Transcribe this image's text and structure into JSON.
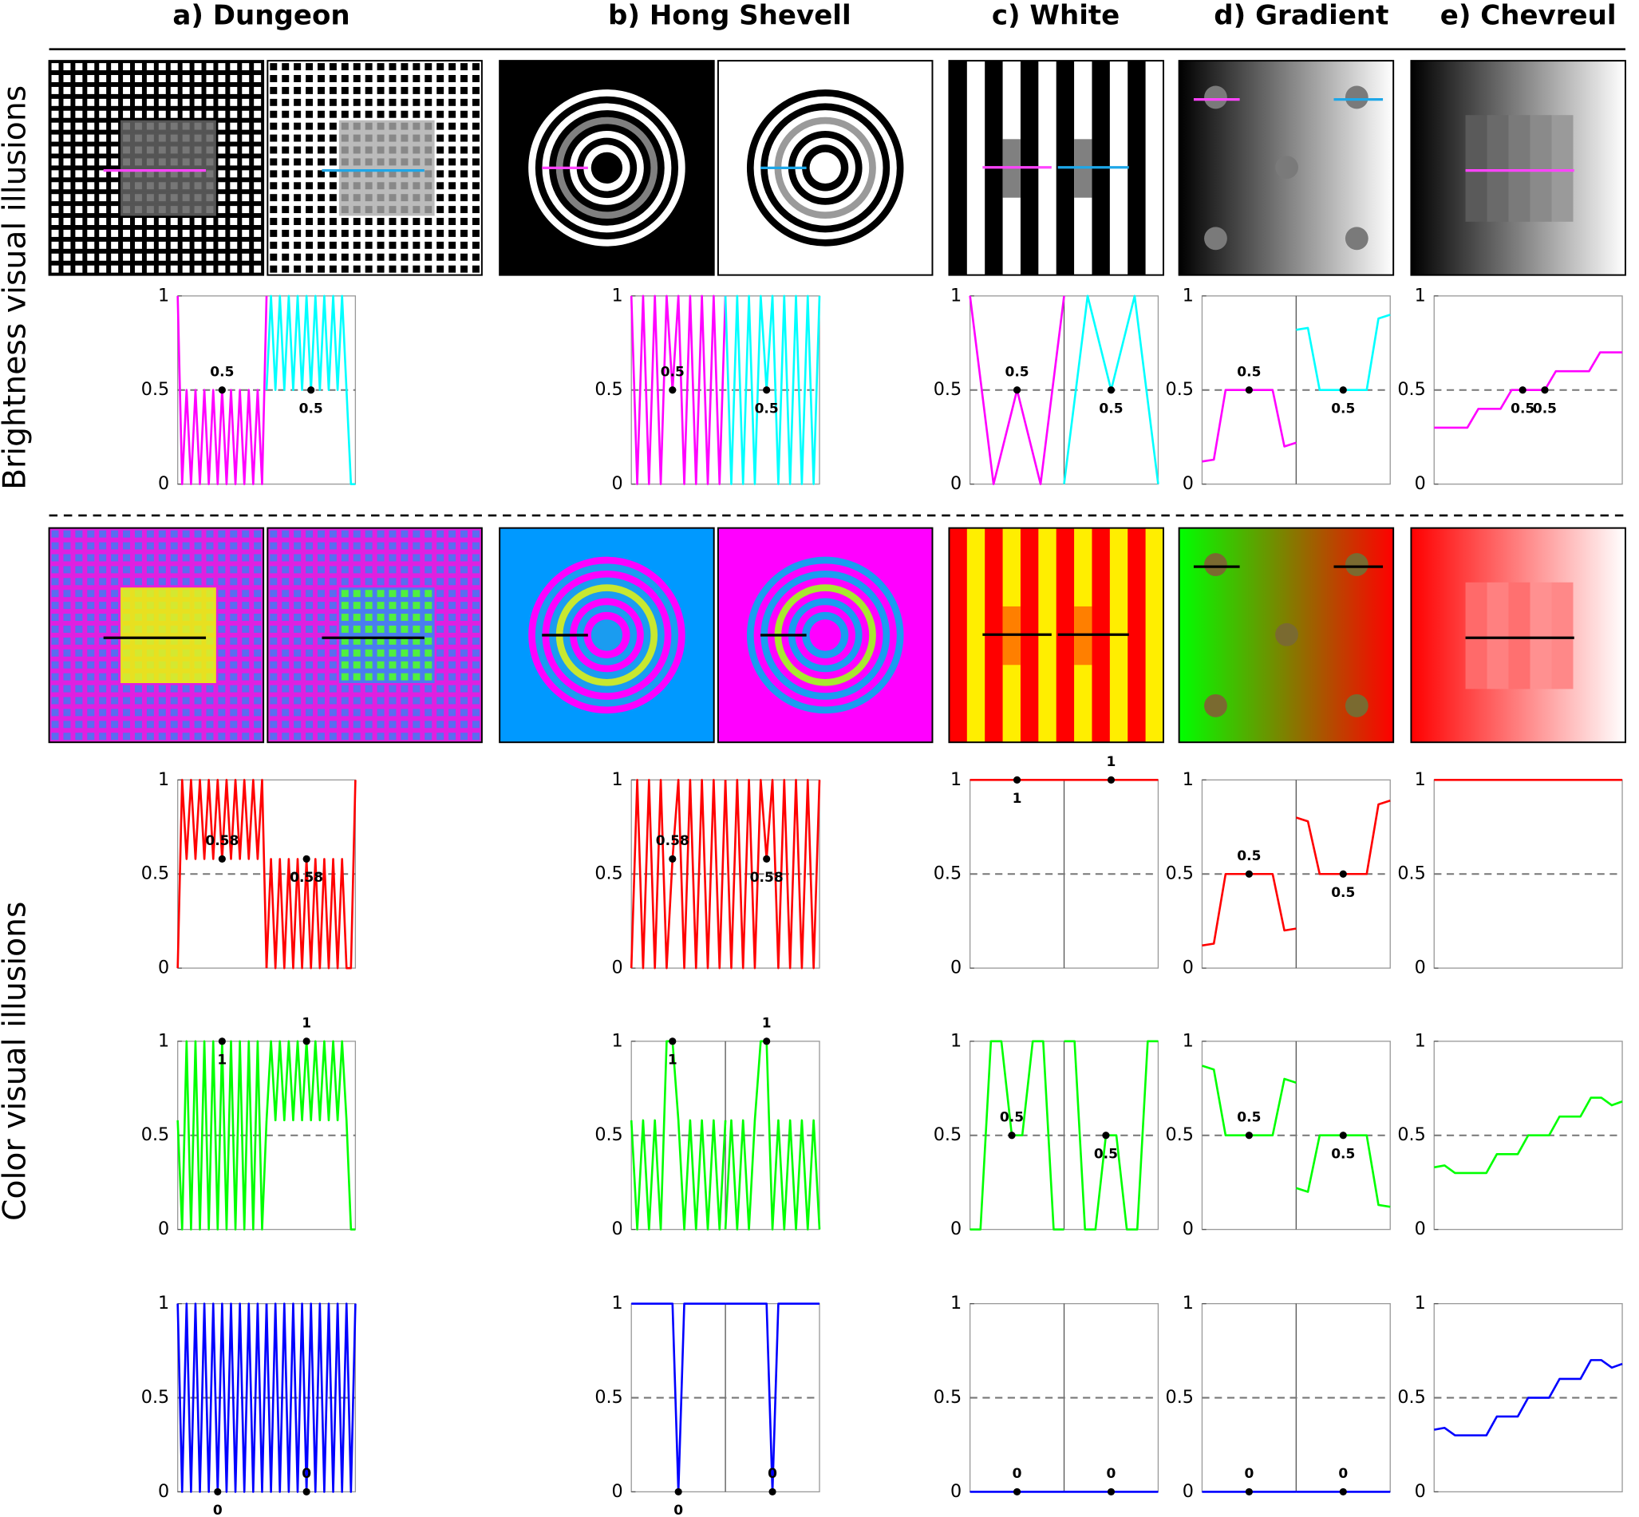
{
  "figure": {
    "columns": [
      "a) Dungeon",
      "b) Hong Shevell",
      "c) White",
      "d) Gradient",
      "e) Chevreul"
    ],
    "rows": [
      "Brightness visual illusions",
      "Color visual illusions"
    ]
  },
  "chart_data": [
    {
      "type": "line",
      "ylim": [
        0,
        1
      ],
      "yticks": [
        0,
        0.5,
        1
      ],
      "reference_line": 0.5,
      "divider": false,
      "series": [
        {
          "color": "#ff00ff",
          "values": [
            1,
            0,
            0.5,
            0,
            0.5,
            0,
            0.5,
            0,
            0.5,
            0,
            0.5,
            0,
            0.5,
            0,
            0.5,
            0,
            0.5,
            0,
            0.5,
            0,
            1
          ]
        },
        {
          "color": "#00ffff",
          "values": [
            0.5,
            1,
            0.5,
            1,
            0.5,
            1,
            0.5,
            1,
            0.5,
            1,
            0.5,
            1,
            0.5,
            1,
            0.5,
            1,
            0.5,
            1,
            0.5,
            0,
            0
          ]
        }
      ],
      "annotations": [
        {
          "series": 0,
          "index": 10,
          "value": 0.5
        },
        {
          "series": 1,
          "index": 10,
          "value": 0.5
        }
      ]
    },
    {
      "type": "line",
      "ylim": [
        0,
        1
      ],
      "yticks": [
        0,
        0.5,
        1
      ],
      "reference_line": 0.5,
      "divider": false,
      "series": [
        {
          "color": "#ff00ff",
          "values": [
            1,
            0,
            1,
            0,
            1,
            0,
            1,
            0.5,
            1,
            0,
            1,
            0,
            1,
            0,
            1,
            0,
            1
          ]
        },
        {
          "color": "#00ffff",
          "values": [
            1,
            0,
            1,
            0,
            1,
            0,
            1,
            0.5,
            1,
            0,
            1,
            0,
            1,
            0,
            1,
            0,
            1
          ]
        }
      ],
      "annotations": [
        {
          "series": 0,
          "index": 7,
          "value": 0.5
        },
        {
          "series": 1,
          "index": 7,
          "value": 0.5
        }
      ]
    },
    {
      "type": "line",
      "ylim": [
        0,
        1
      ],
      "yticks": [
        0,
        0.5,
        1
      ],
      "reference_line": 0.5,
      "divider": true,
      "series": [
        {
          "color": "#ff00ff",
          "values": [
            1,
            0,
            0.5,
            0,
            1
          ]
        },
        {
          "color": "#00ffff",
          "values": [
            0,
            1,
            0.5,
            1,
            0
          ]
        }
      ],
      "annotations": [
        {
          "series": 0,
          "index": 2,
          "value": 0.5
        },
        {
          "series": 1,
          "index": 2,
          "value": 0.5
        }
      ]
    },
    {
      "type": "line",
      "ylim": [
        0,
        1
      ],
      "yticks": [
        0,
        0.5,
        1
      ],
      "reference_line": 0.5,
      "divider": true,
      "series": [
        {
          "color": "#ff00ff",
          "values": [
            0.12,
            0.13,
            0.5,
            0.5,
            0.5,
            0.5,
            0.5,
            0.2,
            0.22
          ]
        },
        {
          "color": "#00ffff",
          "values": [
            0.82,
            0.83,
            0.5,
            0.5,
            0.5,
            0.5,
            0.5,
            0.88,
            0.9
          ]
        }
      ],
      "annotations": [
        {
          "series": 0,
          "index": 4,
          "value": 0.5
        },
        {
          "series": 1,
          "index": 4,
          "value": 0.5
        }
      ]
    },
    {
      "type": "line",
      "ylim": [
        0,
        1
      ],
      "yticks": [
        0,
        0.5,
        1
      ],
      "reference_line": 0.5,
      "divider": false,
      "series": [
        {
          "color": "#ff00ff",
          "values": [
            0.3,
            0.3,
            0.3,
            0.3,
            0.4,
            0.4,
            0.4,
            0.5,
            0.5,
            0.5,
            0.5,
            0.6,
            0.6,
            0.6,
            0.6,
            0.7,
            0.7,
            0.7
          ]
        }
      ],
      "annotations": [
        {
          "series": 0,
          "index": 8,
          "value": 0.5
        },
        {
          "series": 0,
          "index": 10,
          "value": 0.5
        }
      ]
    },
    {
      "type": "line",
      "ylim": [
        0,
        1
      ],
      "yticks": [
        0,
        0.5,
        1
      ],
      "reference_line": 0.5,
      "divider": false,
      "series": [
        {
          "color": "#ff0000",
          "values": [
            0,
            1,
            0.58,
            1,
            0.58,
            1,
            0.58,
            1,
            0.58,
            1,
            0.58,
            1,
            0.58,
            1,
            0.58,
            1,
            0.58,
            1,
            0.58,
            1,
            0
          ]
        },
        {
          "color": "#ff0000",
          "values": [
            0,
            0.58,
            0,
            0.58,
            0,
            0.58,
            0,
            0.58,
            0,
            0.58,
            0,
            0.58,
            0,
            0.58,
            0,
            0.58,
            0,
            0.58,
            0,
            0,
            1
          ]
        }
      ],
      "annotations": [
        {
          "series": 0,
          "index": 10,
          "value": 0.58
        },
        {
          "series": 1,
          "index": 9,
          "value": 0.58
        }
      ]
    },
    {
      "type": "line",
      "ylim": [
        0,
        1
      ],
      "yticks": [
        0,
        0.5,
        1
      ],
      "reference_line": 0.5,
      "divider": false,
      "series": [
        {
          "color": "#ff0000",
          "values": [
            0,
            1,
            0,
            1,
            0,
            1,
            0,
            0.58,
            1,
            0,
            1,
            0,
            1,
            0,
            1,
            0,
            1
          ]
        },
        {
          "color": "#ff0000",
          "values": [
            1,
            0,
            1,
            0,
            1,
            0,
            1,
            0.58,
            1,
            0,
            1,
            0,
            1,
            0,
            1,
            0,
            1
          ]
        }
      ],
      "annotations": [
        {
          "series": 0,
          "index": 7,
          "value": 0.58
        },
        {
          "series": 1,
          "index": 7,
          "value": 0.58
        }
      ]
    },
    {
      "type": "line",
      "ylim": [
        0,
        1
      ],
      "yticks": [
        0,
        0.5,
        1
      ],
      "reference_line": 0.5,
      "divider": true,
      "series": [
        {
          "color": "#ff0000",
          "values": [
            1,
            1,
            1,
            1,
            1
          ]
        },
        {
          "color": "#ff0000",
          "values": [
            1,
            1,
            1,
            1,
            1
          ]
        }
      ],
      "annotations": [
        {
          "series": 0,
          "index": 2,
          "value": 1
        },
        {
          "series": 1,
          "index": 2,
          "value": 1
        }
      ]
    },
    {
      "type": "line",
      "ylim": [
        0,
        1
      ],
      "yticks": [
        0,
        0.5,
        1
      ],
      "reference_line": 0.5,
      "divider": true,
      "series": [
        {
          "color": "#ff0000",
          "values": [
            0.12,
            0.13,
            0.5,
            0.5,
            0.5,
            0.5,
            0.5,
            0.2,
            0.21
          ]
        },
        {
          "color": "#ff0000",
          "values": [
            0.8,
            0.78,
            0.5,
            0.5,
            0.5,
            0.5,
            0.5,
            0.87,
            0.89
          ]
        }
      ],
      "annotations": [
        {
          "series": 0,
          "index": 4,
          "value": 0.5
        },
        {
          "series": 1,
          "index": 4,
          "value": 0.5
        }
      ]
    },
    {
      "type": "line",
      "ylim": [
        0,
        1
      ],
      "yticks": [
        0,
        0.5,
        1
      ],
      "reference_line": 0.5,
      "divider": false,
      "series": [
        {
          "color": "#ff0000",
          "values": [
            1,
            1,
            1,
            1,
            1,
            1,
            1,
            1,
            1,
            1,
            1,
            1,
            1,
            1,
            1,
            1,
            1,
            1
          ]
        }
      ],
      "annotations": []
    },
    {
      "type": "line",
      "ylim": [
        0,
        1
      ],
      "yticks": [
        0,
        0.5,
        1
      ],
      "reference_line": 0.5,
      "divider": false,
      "series": [
        {
          "color": "#00ff00",
          "values": [
            0.58,
            0,
            1,
            0,
            1,
            0,
            1,
            0,
            1,
            0,
            1,
            0,
            1,
            0,
            1,
            0,
            1,
            0,
            1,
            0,
            0.58
          ]
        },
        {
          "color": "#00ff00",
          "values": [
            0.58,
            1,
            0.58,
            1,
            0.58,
            1,
            0.58,
            1,
            0.58,
            1,
            0.58,
            1,
            0.58,
            1,
            0.58,
            1,
            0.58,
            1,
            0.58,
            0,
            0
          ]
        }
      ],
      "annotations": [
        {
          "series": 0,
          "index": 10,
          "value": 1
        },
        {
          "series": 1,
          "index": 9,
          "value": 1
        }
      ]
    },
    {
      "type": "line",
      "ylim": [
        0,
        1
      ],
      "yticks": [
        0,
        0.5,
        1
      ],
      "reference_line": 0.5,
      "divider": true,
      "series": [
        {
          "color": "#00ff00",
          "values": [
            0.58,
            0,
            0.58,
            0,
            0.58,
            0,
            1,
            1,
            0.58,
            0,
            0.58,
            0,
            0.58,
            0,
            0.58,
            0,
            0.58
          ]
        },
        {
          "color": "#00ff00",
          "values": [
            0,
            0.58,
            0,
            0.58,
            0,
            0.58,
            1,
            1,
            0,
            0.58,
            0,
            0.58,
            0,
            0.58,
            0,
            0.58,
            0
          ]
        }
      ],
      "annotations": [
        {
          "series": 0,
          "index": 7,
          "value": 1
        },
        {
          "series": 1,
          "index": 7,
          "value": 1
        }
      ]
    },
    {
      "type": "line",
      "ylim": [
        0,
        1
      ],
      "yticks": [
        0,
        0.5,
        1
      ],
      "reference_line": 0.5,
      "divider": true,
      "series": [
        {
          "color": "#00ff00",
          "values": [
            0,
            0,
            1,
            1,
            0.5,
            0.5,
            1,
            1,
            0,
            0
          ]
        },
        {
          "color": "#00ff00",
          "values": [
            1,
            1,
            0,
            0,
            0.5,
            0.5,
            0,
            0,
            1,
            1
          ]
        }
      ],
      "annotations": [
        {
          "series": 0,
          "index": 4,
          "value": 0.5
        },
        {
          "series": 1,
          "index": 4,
          "value": 0.5
        }
      ]
    },
    {
      "type": "line",
      "ylim": [
        0,
        1
      ],
      "yticks": [
        0,
        0.5,
        1
      ],
      "reference_line": 0.5,
      "divider": true,
      "series": [
        {
          "color": "#00ff00",
          "values": [
            0.87,
            0.85,
            0.5,
            0.5,
            0.5,
            0.5,
            0.5,
            0.8,
            0.78
          ]
        },
        {
          "color": "#00ff00",
          "values": [
            0.22,
            0.2,
            0.5,
            0.5,
            0.5,
            0.5,
            0.5,
            0.13,
            0.12
          ]
        }
      ],
      "annotations": [
        {
          "series": 0,
          "index": 4,
          "value": 0.5
        },
        {
          "series": 1,
          "index": 4,
          "value": 0.5
        }
      ]
    },
    {
      "type": "line",
      "ylim": [
        0,
        1
      ],
      "yticks": [
        0,
        0.5,
        1
      ],
      "reference_line": 0.5,
      "divider": false,
      "series": [
        {
          "color": "#00ff00",
          "values": [
            0.33,
            0.34,
            0.3,
            0.3,
            0.3,
            0.3,
            0.4,
            0.4,
            0.4,
            0.5,
            0.5,
            0.5,
            0.6,
            0.6,
            0.6,
            0.7,
            0.7,
            0.66,
            0.68
          ]
        }
      ],
      "annotations": []
    },
    {
      "type": "line",
      "ylim": [
        0,
        1
      ],
      "yticks": [
        0,
        0.5,
        1
      ],
      "reference_line": 0.5,
      "divider": false,
      "series": [
        {
          "color": "#0000ff",
          "values": [
            1,
            0,
            1,
            0,
            1,
            0,
            1,
            0,
            1,
            0,
            1,
            0,
            1,
            0,
            1,
            0,
            1,
            0,
            1,
            0,
            1
          ]
        },
        {
          "color": "#0000ff",
          "values": [
            1,
            0,
            1,
            0,
            1,
            0,
            1,
            0,
            1,
            0,
            1,
            0,
            1,
            0,
            1,
            0,
            1,
            0,
            1,
            0,
            1
          ]
        }
      ],
      "annotations": [
        {
          "series": 0,
          "index": 9,
          "value": 0
        },
        {
          "series": 1,
          "index": 9,
          "value": 0
        }
      ]
    },
    {
      "type": "line",
      "ylim": [
        0,
        1
      ],
      "yticks": [
        0,
        0.5,
        1
      ],
      "reference_line": 0.5,
      "divider": true,
      "series": [
        {
          "color": "#0000ff",
          "values": [
            1,
            1,
            1,
            1,
            1,
            1,
            1,
            1,
            0,
            1,
            1,
            1,
            1,
            1,
            1,
            1,
            1
          ]
        },
        {
          "color": "#0000ff",
          "values": [
            1,
            1,
            1,
            1,
            1,
            1,
            1,
            1,
            0,
            1,
            1,
            1,
            1,
            1,
            1,
            1,
            1
          ]
        }
      ],
      "annotations": [
        {
          "series": 0,
          "index": 8,
          "value": 0
        },
        {
          "series": 1,
          "index": 8,
          "value": 0
        }
      ]
    },
    {
      "type": "line",
      "ylim": [
        0,
        1
      ],
      "yticks": [
        0,
        0.5,
        1
      ],
      "reference_line": 0.5,
      "divider": true,
      "series": [
        {
          "color": "#0000ff",
          "values": [
            0,
            0,
            0,
            0,
            0
          ]
        },
        {
          "color": "#0000ff",
          "values": [
            0,
            0,
            0,
            0,
            0
          ]
        }
      ],
      "annotations": [
        {
          "series": 0,
          "index": 2,
          "value": 0
        },
        {
          "series": 1,
          "index": 2,
          "value": 0
        }
      ]
    },
    {
      "type": "line",
      "ylim": [
        0,
        1
      ],
      "yticks": [
        0,
        0.5,
        1
      ],
      "reference_line": 0.5,
      "divider": true,
      "series": [
        {
          "color": "#0000ff",
          "values": [
            0,
            0,
            0,
            0,
            0,
            0,
            0,
            0,
            0
          ]
        },
        {
          "color": "#0000ff",
          "values": [
            0,
            0,
            0,
            0,
            0,
            0,
            0,
            0,
            0
          ]
        }
      ],
      "annotations": [
        {
          "series": 0,
          "index": 4,
          "value": 0
        },
        {
          "series": 1,
          "index": 4,
          "value": 0
        }
      ]
    },
    {
      "type": "line",
      "ylim": [
        0,
        1
      ],
      "yticks": [
        0,
        0.5,
        1
      ],
      "reference_line": 0.5,
      "divider": false,
      "series": [
        {
          "color": "#0000ff",
          "values": [
            0.33,
            0.34,
            0.3,
            0.3,
            0.3,
            0.3,
            0.4,
            0.4,
            0.4,
            0.5,
            0.5,
            0.5,
            0.6,
            0.6,
            0.6,
            0.7,
            0.7,
            0.66,
            0.68
          ]
        }
      ],
      "annotations": []
    }
  ]
}
